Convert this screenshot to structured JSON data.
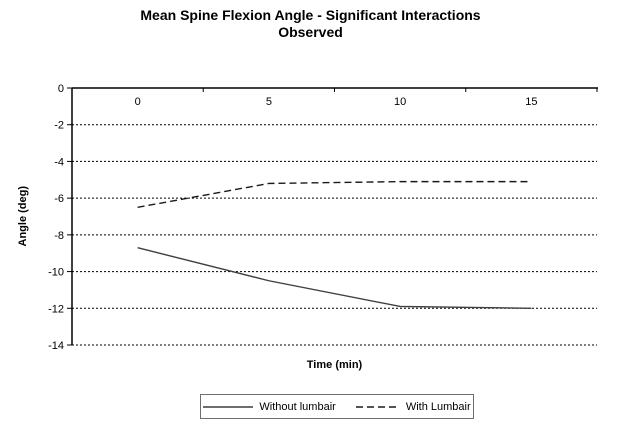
{
  "page": {
    "background": "#ffffff",
    "text_color": "#000000"
  },
  "chart_data": {
    "type": "line",
    "title": "Mean Spine Flexion Angle - Significant Interactions Observed",
    "title_line1": "Mean Spine Flexion Angle - Significant Interactions",
    "title_line2": "Observed",
    "xlabel": "Time (min)",
    "ylabel": "Angle (deg)",
    "categories": [
      "0",
      "5",
      "10",
      "15"
    ],
    "y_tick_labels": [
      "0",
      "-2",
      "-4",
      "-6",
      "-8",
      "-10",
      "-12",
      "-14"
    ],
    "ylim": [
      0,
      -14
    ],
    "y_tick_step": -2,
    "grid": "horizontal-dashed",
    "legend_position": "bottom-center",
    "axis_color": "#000000",
    "gridline_color": "#000000",
    "series": [
      {
        "name": "Without lumbair",
        "line_style": "solid",
        "color": "#3f3f3f",
        "values": [
          -8.7,
          -10.5,
          -11.9,
          -12.0
        ]
      },
      {
        "name": "With Lumbair",
        "line_style": "dashed",
        "color": "#1a1a1a",
        "values": [
          -6.5,
          -5.2,
          -5.1,
          -5.1
        ]
      }
    ]
  }
}
